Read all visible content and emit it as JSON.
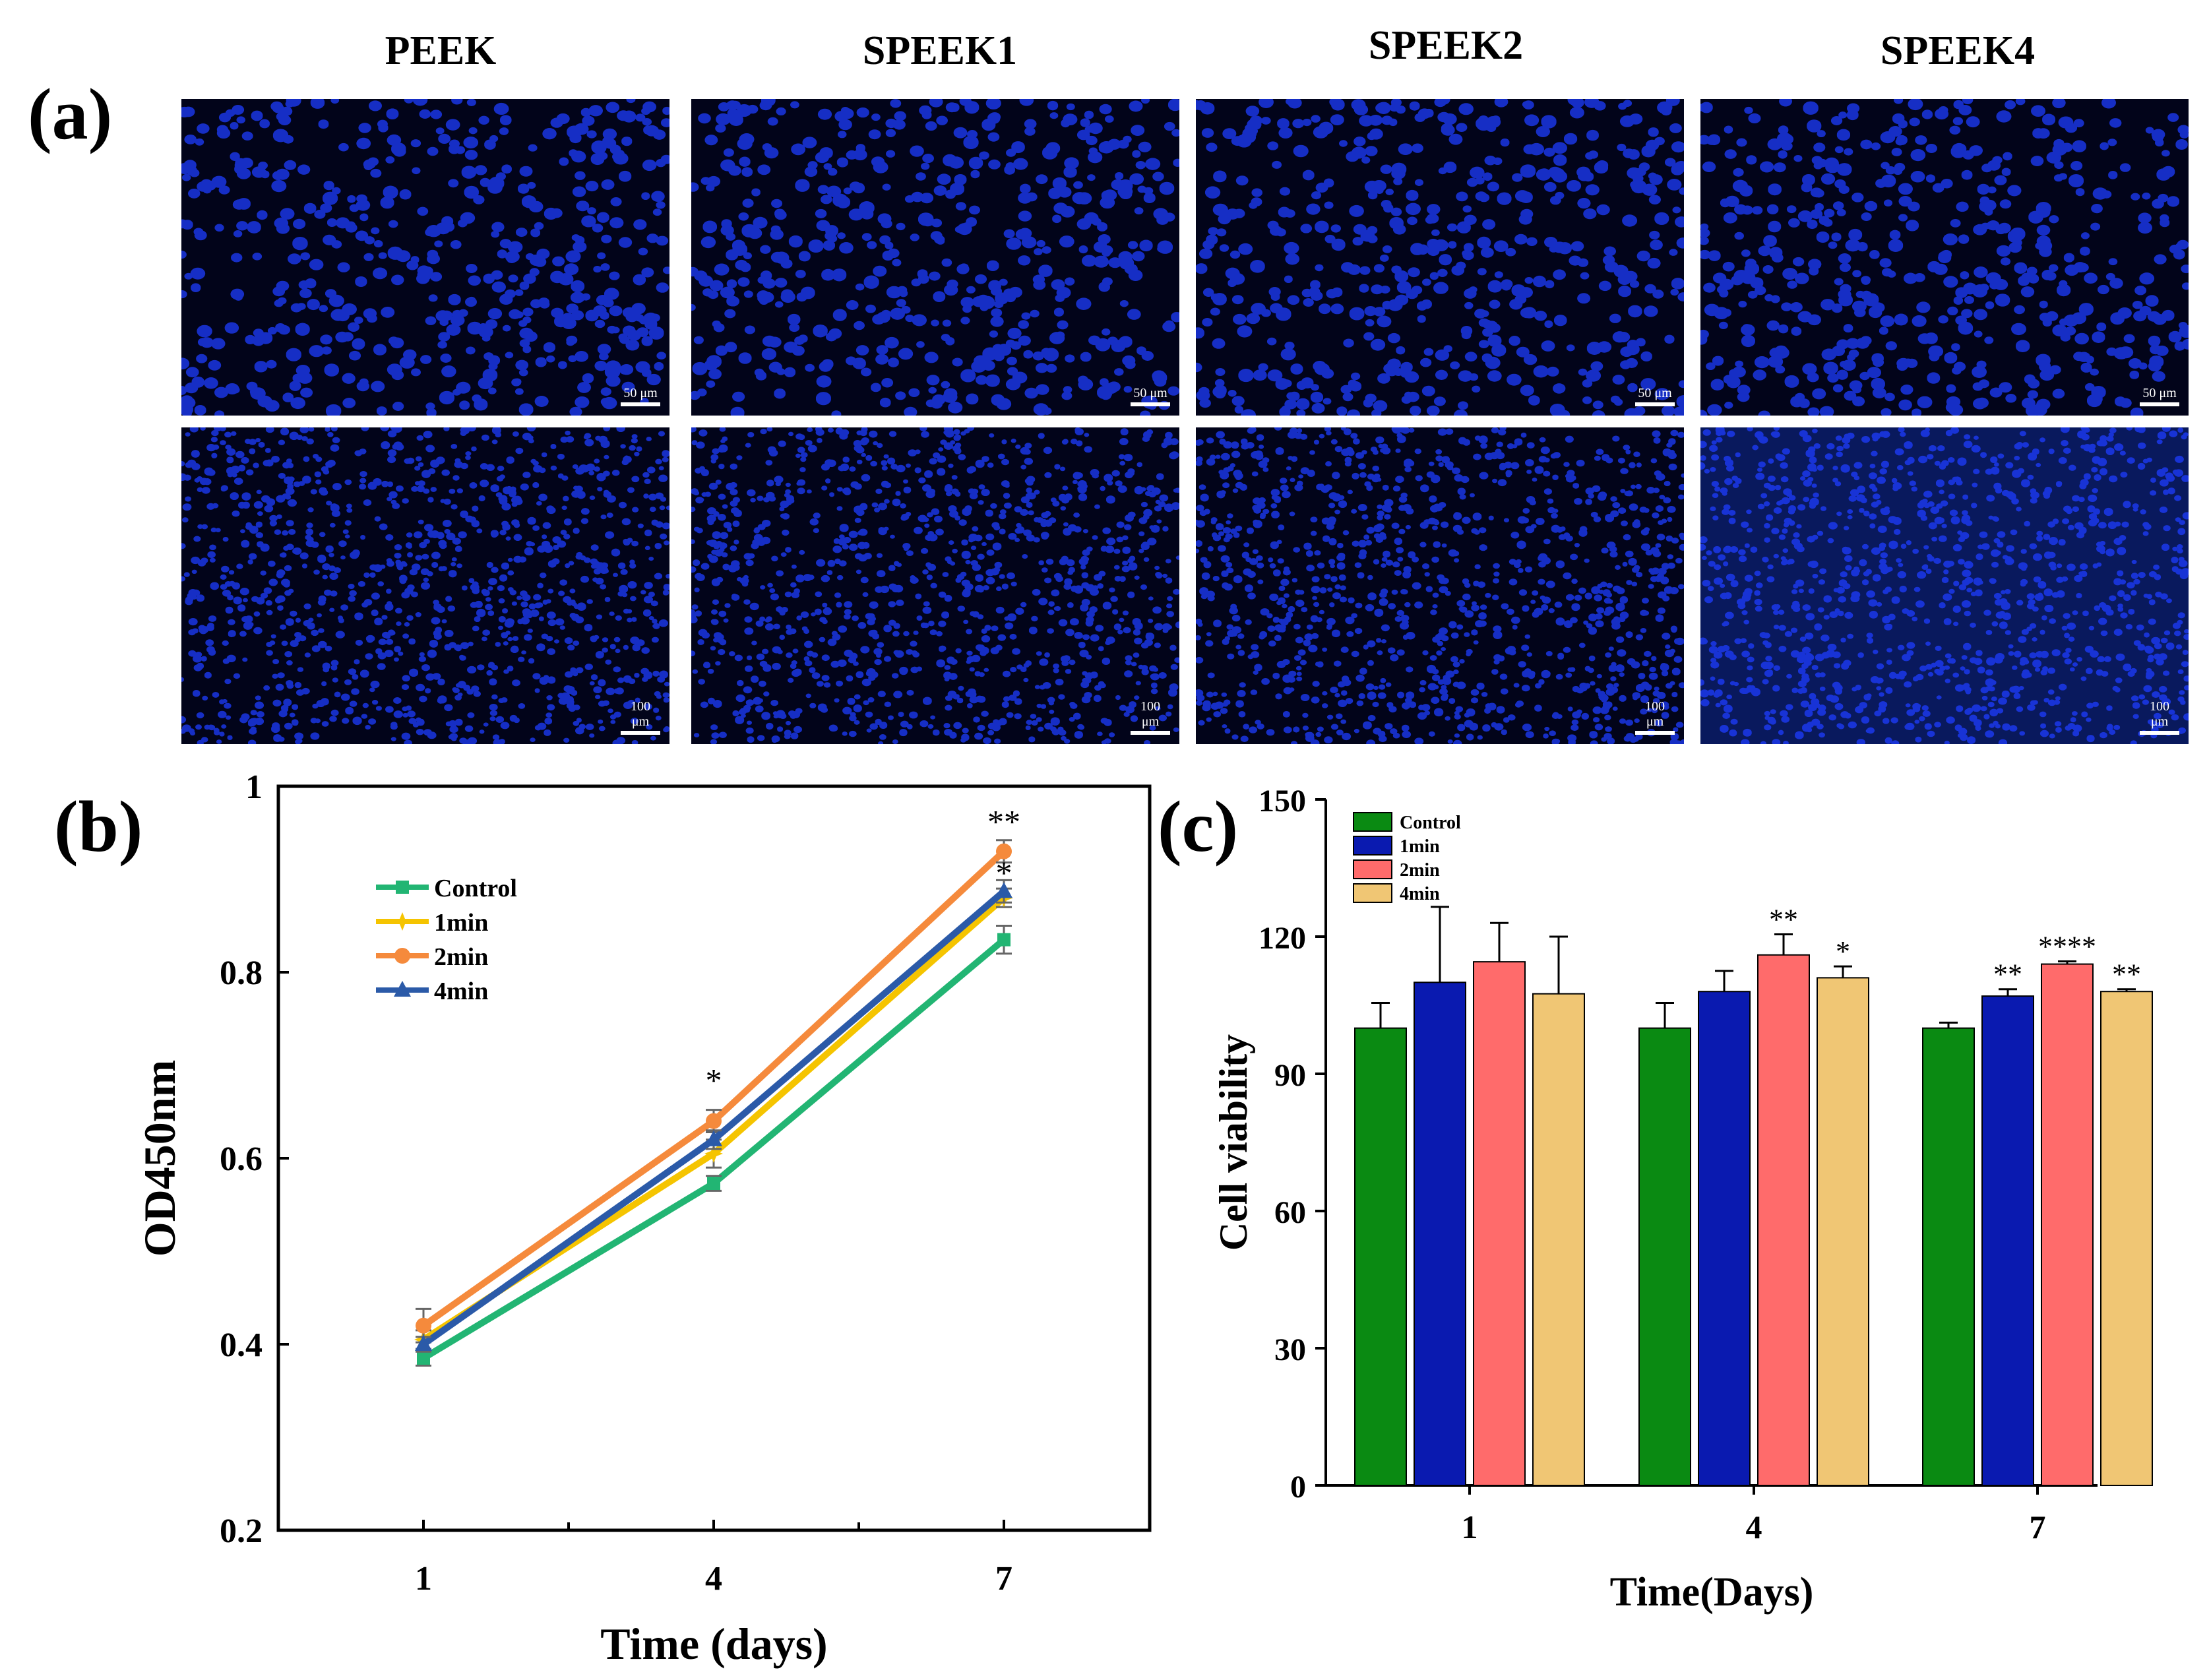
{
  "panel_a": {
    "label": "(a)",
    "columns": [
      "PEEK",
      "SPEEK1",
      "SPEEK2",
      "SPEEK4"
    ],
    "row1_scale": "50 μm",
    "row2_scale": "100 μm",
    "stain_color": "#1e3cff"
  },
  "panel_b": {
    "label": "(b)",
    "colors": {
      "Control": "#22b573",
      "1min": "#f5c400",
      "2min": "#f58a3c",
      "4min": "#2b5aa8"
    }
  },
  "panel_c": {
    "label": "(c)",
    "colors": {
      "Control": "#0a8a12",
      "1min": "#0a1ab0",
      "2min": "#ff6b6b",
      "4min": "#f0c674"
    }
  },
  "chart_data": [
    {
      "type": "line",
      "xlabel": "Time (days)",
      "ylabel": "OD450nm",
      "categories": [
        "1",
        "4",
        "7"
      ],
      "ylim": [
        0.2,
        1.0
      ],
      "yticks": [
        "0.2",
        "0.4",
        "0.6",
        "0.8",
        "1"
      ],
      "series": [
        {
          "name": "Control",
          "values": [
            0.385,
            0.573,
            0.835
          ],
          "errors": [
            0.008,
            0.008,
            0.015
          ],
          "marker": "square"
        },
        {
          "name": "1min",
          "values": [
            0.405,
            0.605,
            0.88
          ],
          "errors": [
            0.01,
            0.015,
            0.01
          ],
          "marker": "star"
        },
        {
          "name": "2min",
          "values": [
            0.42,
            0.64,
            0.93
          ],
          "errors": [
            0.018,
            0.012,
            0.012
          ],
          "marker": "circle"
        },
        {
          "name": "4min",
          "values": [
            0.4,
            0.62,
            0.887
          ],
          "errors": [
            0.008,
            0.01,
            0.012
          ],
          "marker": "triangle"
        }
      ],
      "annotations": [
        {
          "x": "4",
          "text": "*"
        },
        {
          "x": "7",
          "text": "**"
        },
        {
          "x": "7",
          "text": "*"
        }
      ]
    },
    {
      "type": "bar",
      "xlabel": "Time(Days)",
      "ylabel": "Cell viability",
      "categories": [
        "1",
        "4",
        "7"
      ],
      "ylim": [
        0,
        150
      ],
      "yticks": [
        "0",
        "30",
        "60",
        "90",
        "120",
        "150"
      ],
      "series": [
        {
          "name": "Control",
          "values": [
            100,
            100,
            100
          ],
          "errors": [
            5.5,
            5.5,
            1.2
          ],
          "sig": [
            "",
            "",
            ""
          ]
        },
        {
          "name": "1min",
          "values": [
            110,
            108,
            107
          ],
          "errors": [
            16.5,
            4.5,
            1.5
          ],
          "sig": [
            "",
            "",
            "**"
          ]
        },
        {
          "name": "2min",
          "values": [
            114.5,
            116,
            114
          ],
          "errors": [
            8.5,
            4.5,
            0.6
          ],
          "sig": [
            "",
            "**",
            "****"
          ]
        },
        {
          "name": "4min",
          "values": [
            107.5,
            111,
            108
          ],
          "errors": [
            12.5,
            2.5,
            0.5
          ],
          "sig": [
            "",
            "*",
            "**"
          ]
        }
      ]
    }
  ]
}
